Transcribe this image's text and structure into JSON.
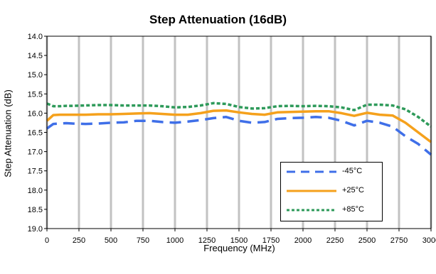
{
  "chart_data": {
    "type": "line",
    "title": "Step Attenuation (16dB)",
    "xlabel": "Frequency (MHz)",
    "ylabel": "Step Attenuation (dB)",
    "xlim": [
      0,
      3000
    ],
    "ylim": [
      14.0,
      19.0
    ],
    "y_inverted": true,
    "grid": "vertical",
    "legend_position": "lower-right",
    "x_ticks": [
      "0",
      "250",
      "500",
      "750",
      "1000",
      "1250",
      "1500",
      "1750",
      "2000",
      "2250",
      "2500",
      "2750",
      "3000"
    ],
    "y_ticks": [
      "14.0",
      "14.5",
      "15.0",
      "15.5",
      "16.0",
      "16.5",
      "17.0",
      "17.5",
      "18.0",
      "18.5",
      "19.0"
    ],
    "series": [
      {
        "name": "-45°C",
        "color": "#3f6fe8",
        "style": "dashed",
        "x": [
          0,
          50,
          100,
          150,
          200,
          300,
          400,
          500,
          600,
          700,
          800,
          900,
          1000,
          1100,
          1200,
          1300,
          1400,
          1500,
          1600,
          1700,
          1800,
          1900,
          2000,
          2100,
          2200,
          2300,
          2400,
          2500,
          2600,
          2700,
          2800,
          2900,
          3000
        ],
        "y": [
          16.4,
          16.28,
          16.27,
          16.26,
          16.27,
          16.28,
          16.27,
          16.25,
          16.24,
          16.2,
          16.2,
          16.23,
          16.25,
          16.22,
          16.18,
          16.13,
          16.1,
          16.2,
          16.25,
          16.23,
          16.15,
          16.13,
          16.12,
          16.1,
          16.12,
          16.2,
          16.32,
          16.2,
          16.25,
          16.35,
          16.6,
          16.8,
          17.08
        ]
      },
      {
        "name": "+25°C",
        "color": "#f5a11c",
        "style": "solid",
        "x": [
          0,
          50,
          100,
          150,
          200,
          300,
          400,
          500,
          600,
          700,
          800,
          900,
          1000,
          1100,
          1200,
          1300,
          1400,
          1500,
          1600,
          1700,
          1800,
          1900,
          2000,
          2100,
          2200,
          2300,
          2400,
          2500,
          2600,
          2700,
          2800,
          2900,
          3000
        ],
        "y": [
          16.2,
          16.05,
          16.04,
          16.04,
          16.04,
          16.04,
          16.03,
          16.03,
          16.02,
          16.01,
          16.0,
          16.02,
          16.04,
          16.04,
          16.0,
          15.94,
          15.93,
          15.98,
          16.02,
          16.04,
          15.98,
          15.97,
          15.96,
          15.95,
          15.95,
          16.0,
          16.07,
          15.99,
          16.04,
          16.06,
          16.25,
          16.5,
          16.75
        ]
      },
      {
        "name": "+85°C",
        "color": "#2e9a5a",
        "style": "dotted",
        "x": [
          0,
          50,
          100,
          150,
          200,
          300,
          400,
          500,
          600,
          700,
          800,
          900,
          1000,
          1100,
          1200,
          1300,
          1400,
          1500,
          1600,
          1700,
          1800,
          1900,
          2000,
          2100,
          2200,
          2300,
          2400,
          2500,
          2600,
          2700,
          2800,
          2900,
          3000
        ],
        "y": [
          15.75,
          15.82,
          15.82,
          15.81,
          15.81,
          15.8,
          15.79,
          15.79,
          15.8,
          15.8,
          15.8,
          15.82,
          15.85,
          15.84,
          15.8,
          15.74,
          15.76,
          15.84,
          15.88,
          15.87,
          15.82,
          15.81,
          15.82,
          15.81,
          15.82,
          15.85,
          15.92,
          15.78,
          15.78,
          15.8,
          15.9,
          16.1,
          16.35
        ]
      }
    ]
  }
}
